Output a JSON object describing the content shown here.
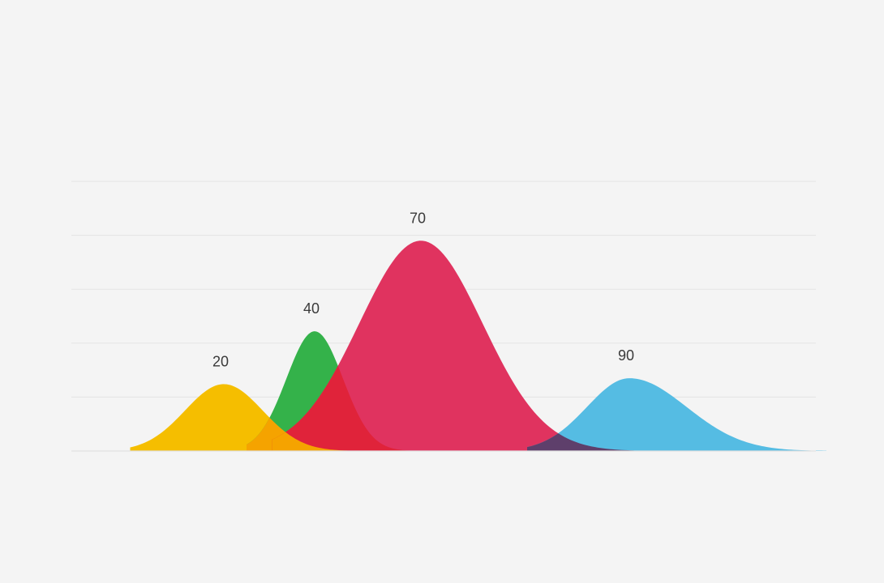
{
  "chart_data": {
    "type": "area",
    "title": "",
    "xlabel": "",
    "ylabel": "",
    "grid": true,
    "legend": "none",
    "ylim": [
      0,
      5
    ],
    "series": [
      {
        "label": "20",
        "color": "#f5be00",
        "peak_height": 1.24,
        "width": 1.0
      },
      {
        "label": "40",
        "color": "#34b24a",
        "peak_height": 2.22,
        "width": 0.8
      },
      {
        "label": "70",
        "color": "#e0335f",
        "peak_height": 3.9,
        "width": 1.1
      },
      {
        "label": "90",
        "color": "#55bce3",
        "peak_height": 1.35,
        "width": 0.92
      }
    ],
    "overlap_colors": {
      "yellow_green": "#f5a300",
      "yellow_pink": "#f5a300",
      "green_pink": "#e0233a",
      "pink_blue": "#5e3f6b"
    }
  }
}
